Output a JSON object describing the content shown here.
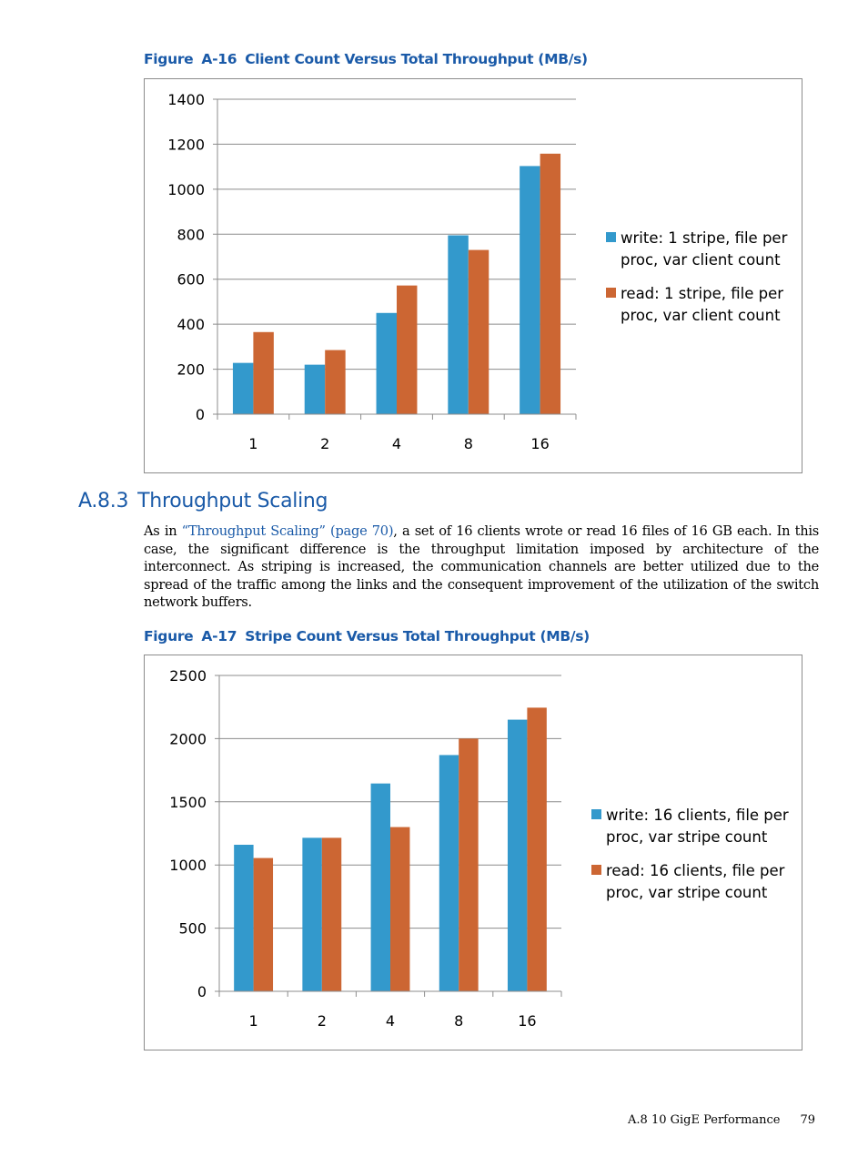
{
  "figure_a16": {
    "label": "Figure",
    "number": "A-16",
    "title": "Client Count Versus Total Throughput (MB/s)"
  },
  "figure_a17": {
    "label": "Figure",
    "number": "A-17",
    "title": "Stripe Count Versus Total Throughput (MB/s)"
  },
  "section": {
    "number": "A.8.3",
    "title": "Throughput Scaling",
    "para_lead": "As in ",
    "para_link": "“Throughput Scaling” (page 70)",
    "para_rest": ", a set of 16 clients wrote or read 16 files of 16 GB each. In this case, the significant difference is the throughput limitation imposed by architecture of the interconnect. As striping is increased, the communication channels are better utilized due to the spread of the traffic among the links and the consequent improvement of the utilization of the switch network buffers."
  },
  "footer": {
    "section_ref": "A.8 10 GigE Performance",
    "page_number": "79"
  },
  "colors": {
    "write": "#3399cc",
    "read": "#cc6633",
    "link": "#1a5aa8"
  },
  "chart_data": [
    {
      "type": "bar",
      "title": "",
      "xlabel": "",
      "ylabel": "",
      "categories": [
        "1",
        "2",
        "4",
        "8",
        "16"
      ],
      "ylim": [
        0,
        1400
      ],
      "yticks": [
        0,
        200,
        400,
        600,
        800,
        1000,
        1200,
        1400
      ],
      "grid": true,
      "legend_position": "right",
      "series": [
        {
          "name": "write: 1 stripe, file per proc, var client count",
          "legend_lines": [
            "write: 1 stripe, file per",
            "proc, var client count"
          ],
          "color": "#3399cc",
          "values": [
            228,
            220,
            450,
            795,
            1103
          ]
        },
        {
          "name": "read: 1 stripe, file per proc, var client count",
          "legend_lines": [
            "read: 1 stripe, file per",
            "proc, var client count"
          ],
          "color": "#cc6633",
          "values": [
            365,
            285,
            572,
            730,
            1158
          ]
        }
      ]
    },
    {
      "type": "bar",
      "title": "",
      "xlabel": "",
      "ylabel": "",
      "categories": [
        "1",
        "2",
        "4",
        "8",
        "16"
      ],
      "ylim": [
        0,
        2500
      ],
      "yticks": [
        0,
        500,
        1000,
        1500,
        2000,
        2500
      ],
      "grid": true,
      "legend_position": "right",
      "series": [
        {
          "name": "write: 16 clients, file per proc, var stripe count",
          "legend_lines": [
            "write: 16 clients, file per",
            "proc, var stripe count"
          ],
          "color": "#3399cc",
          "values": [
            1160,
            1215,
            1645,
            1870,
            2150
          ]
        },
        {
          "name": "read: 16 clients, file per proc, var stripe count",
          "legend_lines": [
            "read: 16 clients, file per",
            "proc, var stripe count"
          ],
          "color": "#cc6633",
          "values": [
            1055,
            1215,
            1300,
            2000,
            2245
          ]
        }
      ]
    }
  ]
}
